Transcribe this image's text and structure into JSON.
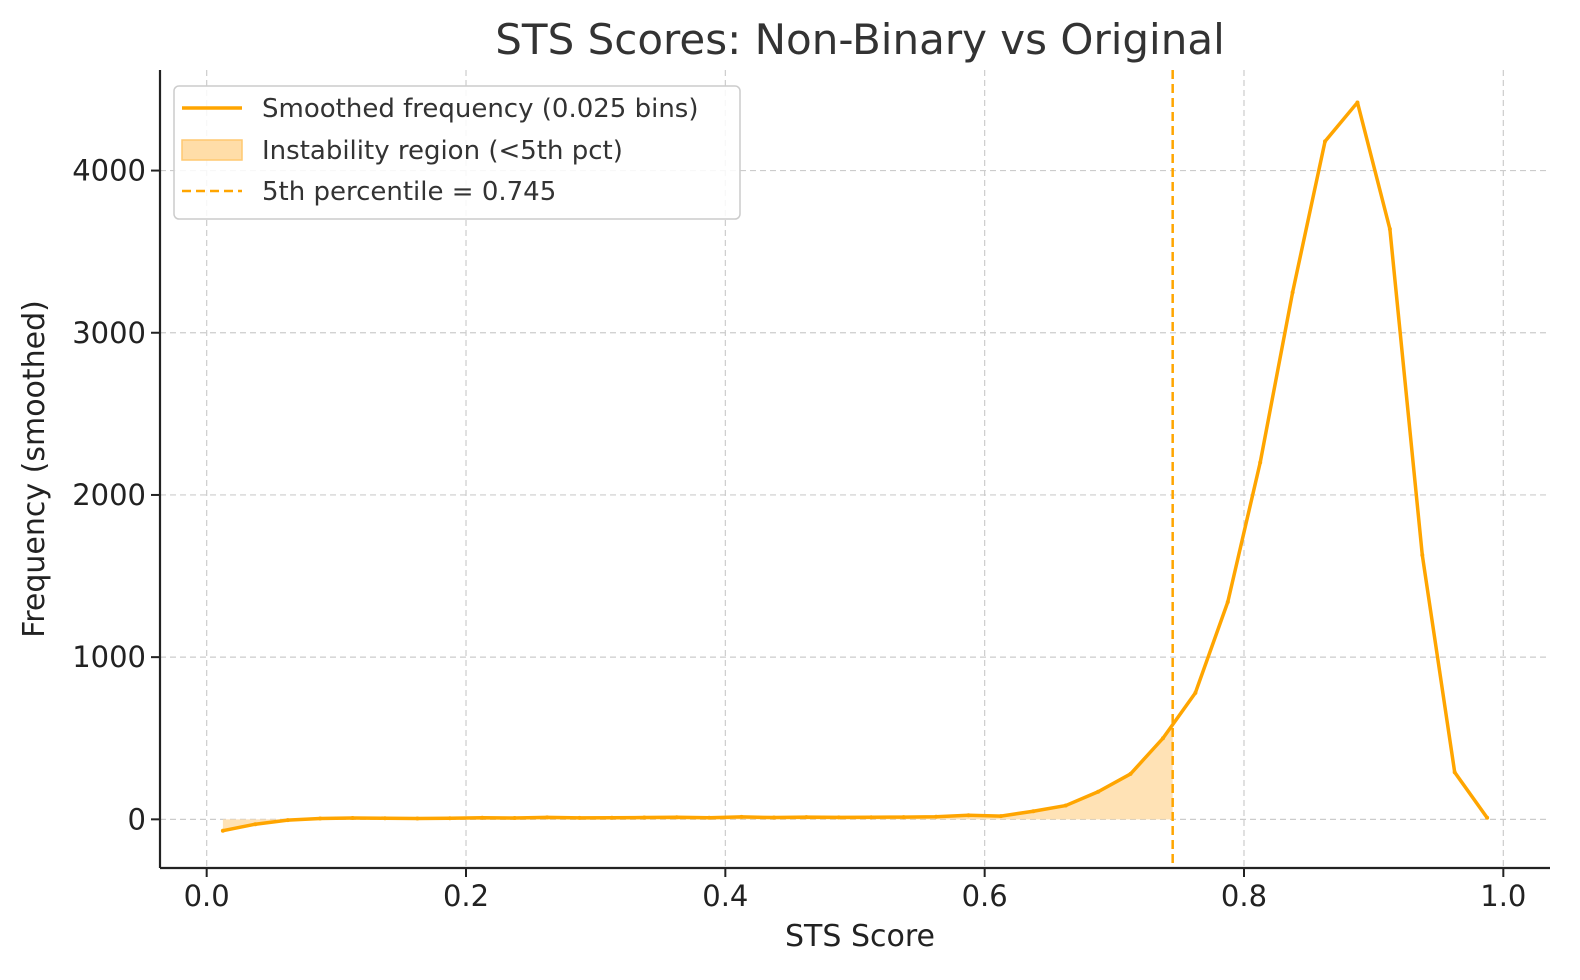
{
  "chart_data": {
    "type": "line",
    "title": "STS Scores: Non-Binary vs Original",
    "xlabel": "STS Score",
    "ylabel": "Frequency (smoothed)",
    "xlim": [
      -0.036,
      1.036
    ],
    "ylim": [
      -300,
      4620
    ],
    "xticks": [
      0.0,
      0.2,
      0.4,
      0.6,
      0.8,
      1.0
    ],
    "xtick_labels": [
      "0.0",
      "0.2",
      "0.4",
      "0.6",
      "0.8",
      "1.0"
    ],
    "yticks": [
      0,
      1000,
      2000,
      3000,
      4000
    ],
    "ytick_labels": [
      "0",
      "1000",
      "2000",
      "3000",
      "4000"
    ],
    "grid": true,
    "legend_position": "top-left",
    "colors": {
      "line": "#ffa500",
      "fill": "#ffdda8",
      "fill_edge": "#ffc870",
      "threshold": "#ffa500"
    },
    "legend": [
      {
        "label": "Smoothed frequency (0.025 bins)",
        "kind": "line"
      },
      {
        "label": "Instability region (<5th pct)",
        "kind": "patch"
      },
      {
        "label": "5th percentile = 0.745",
        "kind": "dashed"
      }
    ],
    "threshold_x": 0.745,
    "series": [
      {
        "name": "Smoothed frequency (0.025 bins)",
        "x": [
          0.0125,
          0.0375,
          0.0625,
          0.0875,
          0.1125,
          0.1375,
          0.1625,
          0.1875,
          0.2125,
          0.2375,
          0.2625,
          0.2875,
          0.3125,
          0.3375,
          0.3625,
          0.3875,
          0.4125,
          0.4375,
          0.4625,
          0.4875,
          0.5125,
          0.5375,
          0.5625,
          0.5875,
          0.6125,
          0.6375,
          0.6625,
          0.6875,
          0.7125,
          0.7375,
          0.7625,
          0.7875,
          0.8125,
          0.8375,
          0.8625,
          0.8875,
          0.9125,
          0.9375,
          0.9625,
          0.9875
        ],
        "values": [
          -70,
          -30,
          -5,
          5,
          8,
          7,
          5,
          7,
          10,
          8,
          12,
          9,
          10,
          11,
          13,
          10,
          15,
          11,
          14,
          12,
          13,
          14,
          16,
          25,
          20,
          50,
          85,
          170,
          280,
          500,
          780,
          1340,
          2200,
          3250,
          4180,
          4420,
          3640,
          1630,
          290,
          10
        ]
      }
    ]
  }
}
